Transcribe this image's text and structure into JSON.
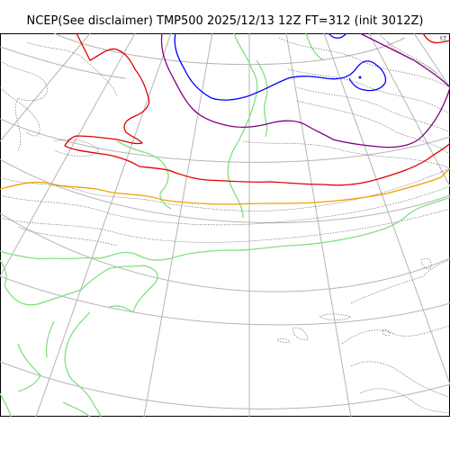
{
  "header": {
    "title": "NCEP(See disclaimer) TMP500 2025/12/13 12Z FT=312 (init 3012Z)"
  },
  "map": {
    "field": "TMP500",
    "contour_colors": {
      "blue": "#0000ff",
      "purple": "#800080",
      "red": "#e00000",
      "orange": "#f0a000",
      "green": "#80e080",
      "graticule": "#b4b4b4",
      "coastline": "#666666"
    },
    "corner_label": "t7"
  }
}
